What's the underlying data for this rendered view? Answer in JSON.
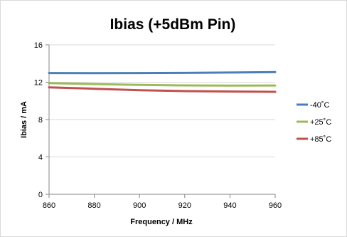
{
  "chart_data": {
    "type": "line",
    "title": "Ibias (+5dBm Pin)",
    "xlabel": "Frequency / MHz",
    "ylabel": "Ibias / mA",
    "xlim": [
      860,
      960
    ],
    "ylim": [
      0,
      16
    ],
    "x_ticks": [
      "860",
      "880",
      "900",
      "920",
      "940",
      "960"
    ],
    "y_ticks": [
      "0",
      "4",
      "8",
      "12",
      "16"
    ],
    "grid": "horizontal",
    "legend_position": "right",
    "x": [
      860,
      880,
      900,
      920,
      940,
      960
    ],
    "series": [
      {
        "name": "-40˚C",
        "color": "#4a7ebb",
        "values": [
          12.98,
          12.97,
          12.98,
          13.0,
          13.04,
          13.08
        ]
      },
      {
        "name": "+25˚C",
        "color": "#9bbb59",
        "values": [
          11.9,
          11.8,
          11.72,
          11.66,
          11.64,
          11.65
        ]
      },
      {
        "name": "+85˚C",
        "color": "#c0504d",
        "values": [
          11.45,
          11.3,
          11.15,
          11.05,
          11.0,
          10.97
        ]
      }
    ]
  }
}
